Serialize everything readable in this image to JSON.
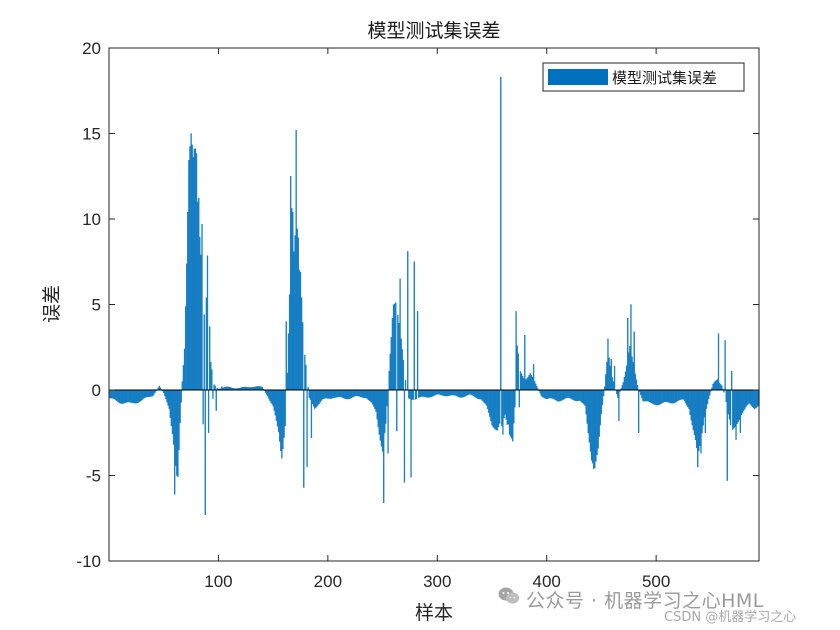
{
  "chart_data": {
    "type": "bar",
    "title": "模型测试集误差",
    "xlabel": "样本",
    "ylabel": "误差",
    "xlim": [
      0,
      594
    ],
    "ylim": [
      -10,
      20
    ],
    "xticks": [
      100,
      200,
      300,
      400,
      500
    ],
    "yticks": [
      -10,
      -5,
      0,
      5,
      10,
      15,
      20
    ],
    "legend": {
      "position": "top-right",
      "entries": [
        "模型测试集误差"
      ]
    },
    "grid": false,
    "series": [
      {
        "name": "模型测试集误差",
        "color": "#0072BD",
        "control_points": [
          [
            1,
            -0.5
          ],
          [
            10,
            -0.7
          ],
          [
            20,
            -0.8
          ],
          [
            30,
            -0.6
          ],
          [
            40,
            -0.3
          ],
          [
            46,
            0.2
          ],
          [
            50,
            -0.2
          ],
          [
            55,
            -1.0
          ],
          [
            58,
            -2.5
          ],
          [
            61,
            -4.5
          ],
          [
            63,
            -5.2
          ],
          [
            65,
            -2.0
          ],
          [
            67,
            0.5
          ],
          [
            69,
            2.5
          ],
          [
            71,
            7.5
          ],
          [
            73,
            13.5
          ],
          [
            75,
            15.0
          ],
          [
            77,
            13.5
          ],
          [
            79,
            14.0
          ],
          [
            81,
            13.5
          ],
          [
            83,
            9.0
          ],
          [
            86,
            6.0
          ],
          [
            88,
            3.0
          ],
          [
            90,
            7.8
          ],
          [
            93,
            1.5
          ],
          [
            96,
            0.3
          ],
          [
            100,
            0.1
          ],
          [
            110,
            0.15
          ],
          [
            120,
            0.1
          ],
          [
            130,
            0.2
          ],
          [
            140,
            0.15
          ],
          [
            145,
            -0.3
          ],
          [
            150,
            -1.0
          ],
          [
            155,
            -2.5
          ],
          [
            158,
            -4.0
          ],
          [
            161,
            -2.0
          ],
          [
            163,
            1.0
          ],
          [
            165,
            5.5
          ],
          [
            167,
            10.5
          ],
          [
            169,
            8.0
          ],
          [
            171,
            10.0
          ],
          [
            173,
            9.0
          ],
          [
            175,
            7.0
          ],
          [
            177,
            4.0
          ],
          [
            179,
            2.0
          ],
          [
            183,
            -0.5
          ],
          [
            188,
            -1.0
          ],
          [
            195,
            -0.6
          ],
          [
            205,
            -0.4
          ],
          [
            215,
            -0.5
          ],
          [
            225,
            -0.4
          ],
          [
            235,
            -0.4
          ],
          [
            240,
            -0.8
          ],
          [
            244,
            -1.3
          ],
          [
            247,
            -2.5
          ],
          [
            250,
            -3.5
          ],
          [
            253,
            -2.0
          ],
          [
            256,
            1.0
          ],
          [
            258,
            3.0
          ],
          [
            260,
            5.0
          ],
          [
            262,
            5.2
          ],
          [
            264,
            4.5
          ],
          [
            267,
            3.0
          ],
          [
            270,
            1.0
          ],
          [
            273,
            -0.5
          ],
          [
            280,
            -0.5
          ],
          [
            290,
            -0.4
          ],
          [
            300,
            -0.3
          ],
          [
            310,
            -0.3
          ],
          [
            320,
            -0.4
          ],
          [
            330,
            -0.3
          ],
          [
            340,
            -0.5
          ],
          [
            345,
            -1.0
          ],
          [
            350,
            -2.0
          ],
          [
            355,
            -2.3
          ],
          [
            357,
            -2.0
          ],
          [
            358,
            10.2
          ],
          [
            359,
            -2.2
          ],
          [
            362,
            -1.5
          ],
          [
            366,
            -2.5
          ],
          [
            369,
            -2.8
          ],
          [
            371,
            -1.0
          ],
          [
            373,
            2.5
          ],
          [
            376,
            1.0
          ],
          [
            380,
            0.6
          ],
          [
            385,
            1.0
          ],
          [
            390,
            0.3
          ],
          [
            395,
            -0.3
          ],
          [
            400,
            -0.5
          ],
          [
            410,
            -0.6
          ],
          [
            420,
            -0.5
          ],
          [
            430,
            -0.6
          ],
          [
            435,
            -1.0
          ],
          [
            438,
            -2.5
          ],
          [
            441,
            -4.0
          ],
          [
            444,
            -4.5
          ],
          [
            447,
            -3.5
          ],
          [
            450,
            -1.5
          ],
          [
            453,
            0.2
          ],
          [
            456,
            2.5
          ],
          [
            459,
            1.0
          ],
          [
            462,
            0.2
          ],
          [
            465,
            -0.5
          ],
          [
            470,
            0.5
          ],
          [
            473,
            1.5
          ],
          [
            476,
            2.5
          ],
          [
            479,
            1.5
          ],
          [
            483,
            0.3
          ],
          [
            488,
            -0.6
          ],
          [
            495,
            -0.8
          ],
          [
            505,
            -0.8
          ],
          [
            515,
            -0.7
          ],
          [
            525,
            -0.6
          ],
          [
            530,
            -1.0
          ],
          [
            533,
            -2.0
          ],
          [
            536,
            -3.0
          ],
          [
            538,
            -4.0
          ],
          [
            541,
            -3.0
          ],
          [
            544,
            -1.5
          ],
          [
            548,
            -0.5
          ],
          [
            552,
            0.3
          ],
          [
            556,
            0.6
          ],
          [
            560,
            0.3
          ],
          [
            563,
            -0.3
          ],
          [
            566,
            -1.5
          ],
          [
            569,
            -2.5
          ],
          [
            573,
            -2.0
          ],
          [
            577,
            -1.5
          ],
          [
            581,
            -1.2
          ],
          [
            585,
            -0.8
          ],
          [
            590,
            -1.0
          ],
          [
            594,
            -0.9
          ]
        ],
        "spikes": [
          [
            60,
            -6.1
          ],
          [
            62,
            -5.0
          ],
          [
            75,
            15.0
          ],
          [
            78,
            14.1
          ],
          [
            81,
            11.0
          ],
          [
            85,
            9.7
          ],
          [
            86,
            -2.0
          ],
          [
            88,
            -7.3
          ],
          [
            91,
            -2.5
          ],
          [
            95,
            -0.5
          ],
          [
            98,
            -1.2
          ],
          [
            103,
            0.2
          ],
          [
            158,
            -4.0
          ],
          [
            162,
            4.0
          ],
          [
            166,
            12.5
          ],
          [
            168,
            10.4
          ],
          [
            171,
            15.2
          ],
          [
            174,
            7.0
          ],
          [
            178,
            -5.7
          ],
          [
            181,
            -4.5
          ],
          [
            185,
            -2.8
          ],
          [
            251,
            -6.6
          ],
          [
            255,
            -3.7
          ],
          [
            259,
            4.2
          ],
          [
            263,
            -2.4
          ],
          [
            266,
            6.5
          ],
          [
            270,
            -5.4
          ],
          [
            273,
            8.1
          ],
          [
            276,
            -5.1
          ],
          [
            279,
            7.5
          ],
          [
            282,
            4.6
          ],
          [
            358,
            18.3
          ],
          [
            360,
            -2.6
          ],
          [
            365,
            -2.0
          ],
          [
            369,
            -3.0
          ],
          [
            372,
            4.6
          ],
          [
            375,
            -1.0
          ],
          [
            380,
            3.2
          ],
          [
            388,
            1.5
          ],
          [
            443,
            -4.6
          ],
          [
            456,
            3.0
          ],
          [
            459,
            1.8
          ],
          [
            462,
            1.4
          ],
          [
            466,
            -1.8
          ],
          [
            474,
            4.2
          ],
          [
            477,
            5.0
          ],
          [
            480,
            3.4
          ],
          [
            484,
            -2.5
          ],
          [
            538,
            -4.5
          ],
          [
            541,
            -3.7
          ],
          [
            545,
            -2.5
          ],
          [
            557,
            3.3
          ],
          [
            563,
            2.9
          ],
          [
            565,
            -5.3
          ],
          [
            569,
            1.1
          ],
          [
            573,
            -2.9
          ],
          [
            577,
            -2.5
          ]
        ]
      }
    ]
  },
  "watermark": {
    "main": "公众号 · 机器学习之心HML",
    "sub": "CSDN @机器学习之心"
  }
}
